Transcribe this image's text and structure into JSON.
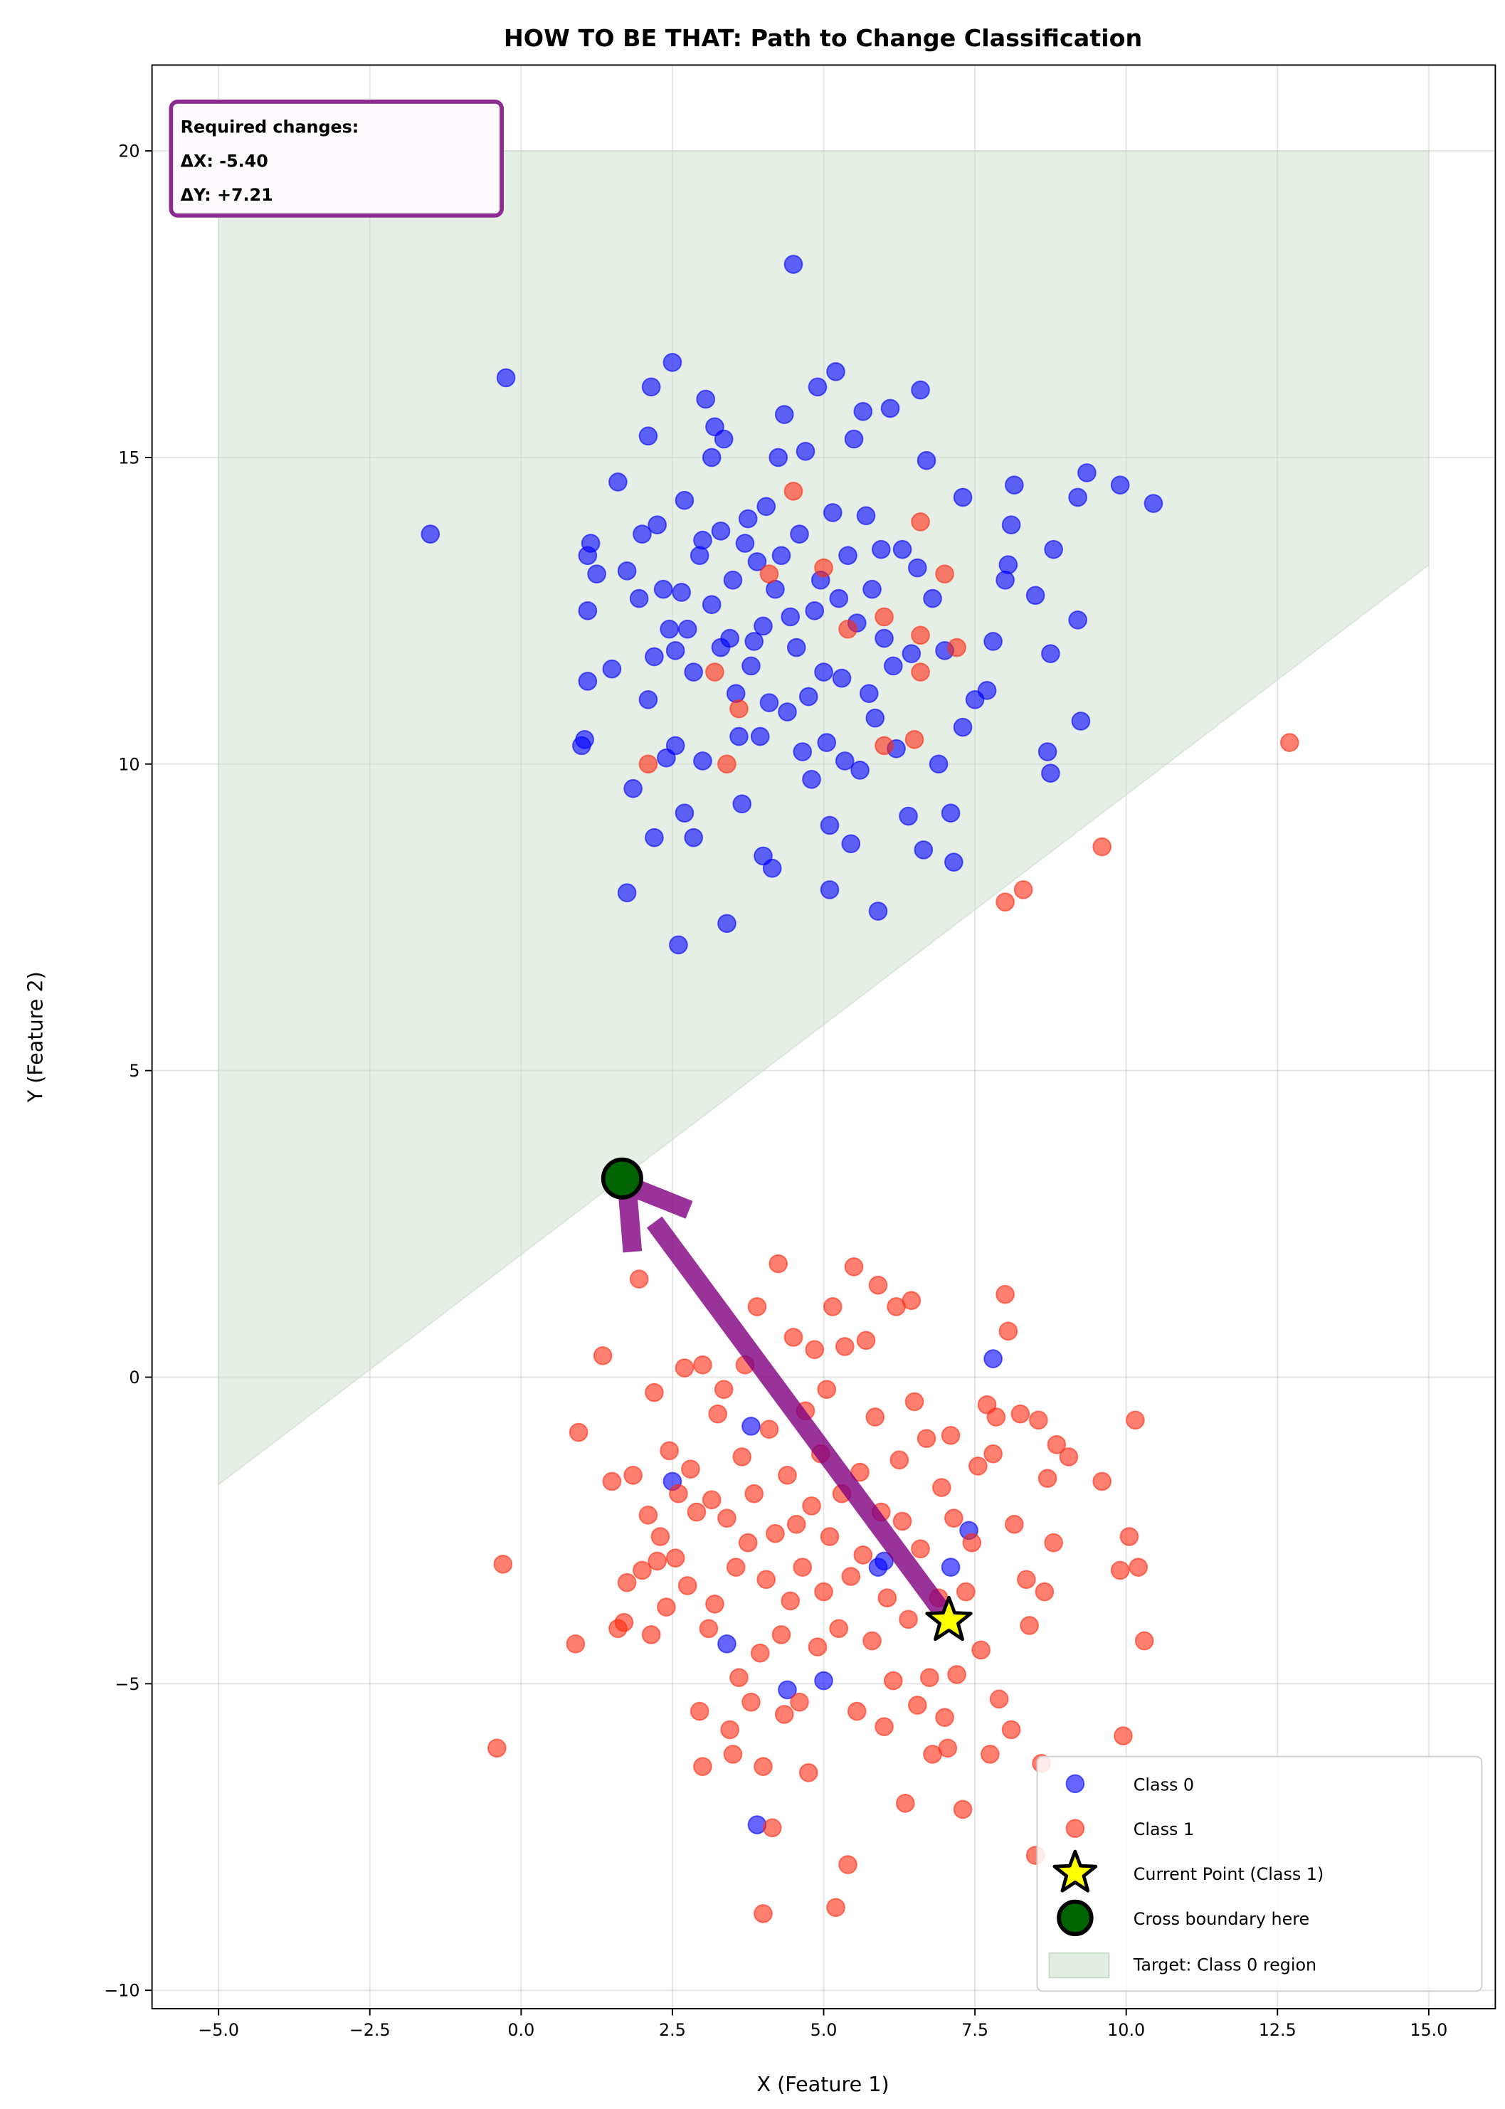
{
  "chart_data": {
    "type": "scatter",
    "title": "HOW TO BE THAT: Path to Change Classification",
    "xlabel": "X (Feature 1)",
    "ylabel": "Y (Feature 2)",
    "xlim": [
      -6.1,
      16.1
    ],
    "ylim": [
      -10.3,
      21.4
    ],
    "xticks": [
      -5.0,
      -2.5,
      0.0,
      2.5,
      5.0,
      7.5,
      10.0,
      12.5,
      15.0
    ],
    "xtick_labels": [
      "−5.0",
      "−2.5",
      "0.0",
      "2.5",
      "5.0",
      "7.5",
      "10.0",
      "12.5",
      "15.0"
    ],
    "yticks": [
      -10,
      -5,
      0,
      5,
      10,
      15,
      20
    ],
    "ytick_labels": [
      "−10",
      "−5",
      "0",
      "5",
      "10",
      "15",
      "20"
    ],
    "grid": true,
    "legend_position": "lower-right",
    "series": [
      {
        "name": "Class 0",
        "color": "#0000ff",
        "points": [
          [
            1.0,
            10.3
          ],
          [
            1.05,
            10.4
          ],
          [
            1.1,
            11.35
          ],
          [
            1.1,
            12.5
          ],
          [
            1.1,
            13.4
          ],
          [
            1.15,
            13.6
          ],
          [
            1.25,
            13.1
          ],
          [
            1.5,
            11.55
          ],
          [
            1.6,
            14.6
          ],
          [
            1.75,
            13.15
          ],
          [
            1.75,
            7.9
          ],
          [
            1.85,
            9.6
          ],
          [
            1.95,
            12.7
          ],
          [
            2.0,
            13.75
          ],
          [
            2.1,
            11.05
          ],
          [
            2.1,
            15.35
          ],
          [
            2.15,
            16.15
          ],
          [
            2.2,
            8.8
          ],
          [
            2.2,
            11.75
          ],
          [
            2.25,
            13.9
          ],
          [
            2.35,
            12.85
          ],
          [
            2.4,
            10.1
          ],
          [
            2.45,
            12.2
          ],
          [
            2.5,
            16.55
          ],
          [
            2.55,
            11.85
          ],
          [
            2.55,
            10.3
          ],
          [
            2.65,
            12.8
          ],
          [
            2.7,
            14.3
          ],
          [
            2.7,
            9.2
          ],
          [
            2.75,
            12.2
          ],
          [
            2.85,
            8.8
          ],
          [
            2.85,
            11.5
          ],
          [
            2.95,
            13.4
          ],
          [
            3.0,
            10.05
          ],
          [
            3.0,
            13.65
          ],
          [
            3.05,
            15.95
          ],
          [
            3.15,
            15.0
          ],
          [
            3.15,
            12.6
          ],
          [
            3.2,
            15.5
          ],
          [
            3.3,
            13.8
          ],
          [
            3.3,
            11.9
          ],
          [
            3.35,
            15.3
          ],
          [
            3.4,
            7.4
          ],
          [
            3.45,
            12.05
          ],
          [
            3.5,
            13.0
          ],
          [
            3.55,
            11.15
          ],
          [
            3.6,
            10.45
          ],
          [
            3.65,
            9.35
          ],
          [
            3.7,
            13.6
          ],
          [
            3.75,
            14.0
          ],
          [
            3.8,
            11.6
          ],
          [
            3.85,
            12.0
          ],
          [
            3.9,
            13.3
          ],
          [
            3.95,
            10.45
          ],
          [
            4.0,
            8.5
          ],
          [
            4.0,
            12.25
          ],
          [
            4.05,
            14.2
          ],
          [
            4.1,
            11.0
          ],
          [
            4.15,
            8.3
          ],
          [
            4.2,
            12.85
          ],
          [
            4.25,
            15.0
          ],
          [
            4.3,
            13.4
          ],
          [
            4.35,
            15.7
          ],
          [
            4.4,
            10.85
          ],
          [
            4.45,
            12.4
          ],
          [
            4.5,
            18.15
          ],
          [
            4.55,
            11.9
          ],
          [
            4.6,
            13.75
          ],
          [
            4.65,
            10.2
          ],
          [
            4.7,
            15.1
          ],
          [
            4.75,
            11.1
          ],
          [
            4.8,
            9.75
          ],
          [
            4.85,
            12.5
          ],
          [
            4.9,
            16.15
          ],
          [
            4.95,
            13.0
          ],
          [
            5.0,
            11.5
          ],
          [
            5.05,
            10.35
          ],
          [
            5.1,
            9.0
          ],
          [
            5.1,
            7.95
          ],
          [
            5.15,
            14.1
          ],
          [
            5.2,
            16.4
          ],
          [
            5.25,
            12.7
          ],
          [
            5.3,
            11.4
          ],
          [
            5.35,
            10.05
          ],
          [
            5.4,
            13.4
          ],
          [
            5.45,
            8.7
          ],
          [
            5.5,
            15.3
          ],
          [
            5.55,
            12.3
          ],
          [
            5.6,
            9.9
          ],
          [
            5.65,
            15.75
          ],
          [
            5.7,
            14.05
          ],
          [
            5.75,
            11.15
          ],
          [
            5.8,
            12.85
          ],
          [
            5.85,
            10.75
          ],
          [
            5.9,
            7.6
          ],
          [
            5.95,
            13.5
          ],
          [
            6.0,
            12.05
          ],
          [
            6.1,
            15.8
          ],
          [
            6.15,
            11.6
          ],
          [
            6.2,
            10.25
          ],
          [
            6.3,
            13.5
          ],
          [
            6.4,
            9.15
          ],
          [
            6.45,
            11.8
          ],
          [
            6.55,
            13.2
          ],
          [
            6.6,
            16.1
          ],
          [
            6.65,
            8.6
          ],
          [
            6.7,
            14.95
          ],
          [
            6.8,
            12.7
          ],
          [
            6.9,
            10.0
          ],
          [
            7.0,
            11.85
          ],
          [
            7.1,
            9.2
          ],
          [
            7.15,
            8.4
          ],
          [
            7.3,
            14.35
          ],
          [
            7.3,
            10.6
          ],
          [
            7.5,
            11.05
          ],
          [
            7.7,
            11.2
          ],
          [
            7.8,
            12.0
          ],
          [
            8.0,
            13.0
          ],
          [
            8.05,
            13.25
          ],
          [
            8.1,
            13.9
          ],
          [
            8.15,
            14.55
          ],
          [
            8.5,
            12.75
          ],
          [
            8.7,
            10.2
          ],
          [
            8.75,
            9.85
          ],
          [
            8.75,
            11.8
          ],
          [
            8.8,
            13.5
          ],
          [
            9.2,
            12.35
          ],
          [
            9.25,
            10.7
          ],
          [
            9.2,
            14.35
          ],
          [
            9.35,
            14.75
          ],
          [
            9.9,
            14.55
          ],
          [
            10.45,
            14.25
          ],
          [
            -1.5,
            13.75
          ],
          [
            -0.25,
            16.3
          ],
          [
            2.6,
            7.05
          ],
          [
            7.8,
            0.3
          ],
          [
            3.9,
            -7.3
          ],
          [
            4.4,
            -5.1
          ],
          [
            5.0,
            -4.95
          ],
          [
            3.4,
            -4.35
          ],
          [
            2.5,
            -1.7
          ],
          [
            3.8,
            -0.8
          ],
          [
            7.1,
            -3.1
          ],
          [
            5.9,
            -3.1
          ],
          [
            7.4,
            -2.5
          ],
          [
            6.0,
            -3.0
          ]
        ]
      },
      {
        "name": "Class 1",
        "color": "#ff2a10",
        "points": [
          [
            -0.4,
            -6.05
          ],
          [
            -0.3,
            -3.05
          ],
          [
            0.9,
            -4.35
          ],
          [
            0.95,
            -0.9
          ],
          [
            1.35,
            0.35
          ],
          [
            1.5,
            -1.7
          ],
          [
            1.6,
            -4.1
          ],
          [
            1.7,
            -4.0
          ],
          [
            1.75,
            -3.35
          ],
          [
            1.85,
            -1.6
          ],
          [
            1.95,
            1.6
          ],
          [
            2.0,
            -3.15
          ],
          [
            2.1,
            -2.25
          ],
          [
            2.15,
            -4.2
          ],
          [
            2.2,
            -0.25
          ],
          [
            2.25,
            -3.0
          ],
          [
            2.3,
            -2.6
          ],
          [
            2.4,
            -3.75
          ],
          [
            2.45,
            -1.2
          ],
          [
            2.55,
            -2.95
          ],
          [
            2.6,
            -1.9
          ],
          [
            2.7,
            0.15
          ],
          [
            2.75,
            -3.4
          ],
          [
            2.8,
            -1.5
          ],
          [
            2.9,
            -2.2
          ],
          [
            2.95,
            -5.45
          ],
          [
            3.0,
            -6.35
          ],
          [
            3.0,
            0.2
          ],
          [
            3.1,
            -4.1
          ],
          [
            3.15,
            -2.0
          ],
          [
            3.2,
            -3.7
          ],
          [
            3.25,
            -0.6
          ],
          [
            3.35,
            -0.2
          ],
          [
            3.4,
            -2.3
          ],
          [
            3.45,
            -5.75
          ],
          [
            3.5,
            -6.15
          ],
          [
            3.55,
            -3.1
          ],
          [
            3.6,
            -4.9
          ],
          [
            3.65,
            -1.3
          ],
          [
            3.7,
            0.2
          ],
          [
            3.75,
            -2.7
          ],
          [
            3.8,
            -5.3
          ],
          [
            3.85,
            -1.9
          ],
          [
            3.9,
            1.15
          ],
          [
            3.95,
            -4.5
          ],
          [
            4.0,
            -6.35
          ],
          [
            4.0,
            -8.75
          ],
          [
            4.05,
            -3.3
          ],
          [
            4.1,
            -0.85
          ],
          [
            4.15,
            -7.35
          ],
          [
            4.2,
            -2.55
          ],
          [
            4.25,
            1.85
          ],
          [
            4.3,
            -4.2
          ],
          [
            4.35,
            -5.5
          ],
          [
            4.4,
            -1.6
          ],
          [
            4.45,
            -3.65
          ],
          [
            4.5,
            0.65
          ],
          [
            4.55,
            -2.4
          ],
          [
            4.6,
            -5.3
          ],
          [
            4.65,
            -3.1
          ],
          [
            4.7,
            -0.55
          ],
          [
            4.75,
            -6.45
          ],
          [
            4.8,
            -2.1
          ],
          [
            4.85,
            0.45
          ],
          [
            4.9,
            -4.4
          ],
          [
            4.95,
            -1.25
          ],
          [
            5.0,
            -3.5
          ],
          [
            5.05,
            -0.2
          ],
          [
            5.1,
            -2.6
          ],
          [
            5.15,
            1.15
          ],
          [
            5.2,
            -8.65
          ],
          [
            5.25,
            -4.1
          ],
          [
            5.3,
            -1.9
          ],
          [
            5.35,
            0.5
          ],
          [
            5.4,
            -7.95
          ],
          [
            5.45,
            -3.25
          ],
          [
            5.5,
            1.8
          ],
          [
            5.55,
            -5.45
          ],
          [
            5.6,
            -1.55
          ],
          [
            5.65,
            -2.9
          ],
          [
            5.7,
            0.6
          ],
          [
            5.8,
            -4.3
          ],
          [
            5.85,
            -0.65
          ],
          [
            5.9,
            1.5
          ],
          [
            5.95,
            -2.2
          ],
          [
            6.0,
            -5.7
          ],
          [
            6.05,
            -3.6
          ],
          [
            6.15,
            -4.95
          ],
          [
            6.2,
            1.15
          ],
          [
            6.25,
            -1.35
          ],
          [
            6.3,
            -2.35
          ],
          [
            6.35,
            -6.95
          ],
          [
            6.4,
            -3.95
          ],
          [
            6.45,
            1.25
          ],
          [
            6.5,
            -0.4
          ],
          [
            6.55,
            -5.35
          ],
          [
            6.6,
            -2.8
          ],
          [
            6.7,
            -1.0
          ],
          [
            6.75,
            -4.9
          ],
          [
            6.8,
            -6.15
          ],
          [
            6.9,
            -3.6
          ],
          [
            6.95,
            -1.8
          ],
          [
            7.0,
            -5.55
          ],
          [
            7.05,
            -6.05
          ],
          [
            7.1,
            -0.95
          ],
          [
            7.15,
            -2.3
          ],
          [
            7.2,
            -4.85
          ],
          [
            7.3,
            -7.05
          ],
          [
            7.35,
            -3.5
          ],
          [
            7.45,
            -2.7
          ],
          [
            7.55,
            -1.45
          ],
          [
            7.6,
            -4.45
          ],
          [
            7.7,
            -0.45
          ],
          [
            7.75,
            -6.15
          ],
          [
            7.8,
            -1.25
          ],
          [
            7.85,
            -0.65
          ],
          [
            7.9,
            -5.25
          ],
          [
            8.0,
            1.35
          ],
          [
            8.05,
            0.75
          ],
          [
            8.1,
            -5.75
          ],
          [
            8.15,
            -2.4
          ],
          [
            8.25,
            -0.6
          ],
          [
            8.35,
            -3.3
          ],
          [
            8.4,
            -4.05
          ],
          [
            8.5,
            -7.8
          ],
          [
            8.55,
            -0.7
          ],
          [
            8.6,
            -6.3
          ],
          [
            8.65,
            -3.5
          ],
          [
            8.7,
            -1.65
          ],
          [
            8.8,
            -2.7
          ],
          [
            8.85,
            -1.1
          ],
          [
            9.05,
            -1.3
          ],
          [
            9.6,
            -1.7
          ],
          [
            9.9,
            -3.15
          ],
          [
            9.95,
            -5.85
          ],
          [
            10.05,
            -2.6
          ],
          [
            10.15,
            -0.7
          ],
          [
            10.2,
            -3.1
          ],
          [
            10.3,
            -4.3
          ],
          [
            4.5,
            14.45
          ],
          [
            6.6,
            13.95
          ],
          [
            7.0,
            13.1
          ],
          [
            5.0,
            13.2
          ],
          [
            4.1,
            13.1
          ],
          [
            6.0,
            12.4
          ],
          [
            5.4,
            12.2
          ],
          [
            6.6,
            12.1
          ],
          [
            6.6,
            11.5
          ],
          [
            7.2,
            11.9
          ],
          [
            2.1,
            10.0
          ],
          [
            3.4,
            10.0
          ],
          [
            3.2,
            11.5
          ],
          [
            3.6,
            10.9
          ],
          [
            6.0,
            10.3
          ],
          [
            6.5,
            10.4
          ],
          [
            8.0,
            7.75
          ],
          [
            8.3,
            7.95
          ],
          [
            9.6,
            8.65
          ],
          [
            12.7,
            10.35
          ]
        ]
      }
    ],
    "current_point": {
      "name": "Current Point (Class 1)",
      "x": 7.07,
      "y": -3.97,
      "color": "#ffff00"
    },
    "boundary_point": {
      "name": "Cross boundary here",
      "x": 1.67,
      "y": 3.24,
      "color": "#006400"
    },
    "arrow_color": "#800080",
    "target_region": {
      "name": "Target: Class 0 region",
      "color": "#c8dcc8",
      "x_range": [
        -5,
        15
      ],
      "y_top": 20,
      "lower_boundary": [
        [
          -5,
          -1.75
        ],
        [
          15,
          13.25
        ]
      ]
    },
    "annotation": {
      "heading": "Required changes:",
      "dx": "ΔX: -5.40",
      "dy": "ΔY: +7.21",
      "border_color": "#8b2a8f"
    }
  }
}
